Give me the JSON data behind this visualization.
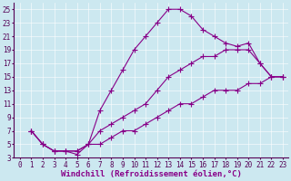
{
  "background_color": "#cce8f0",
  "plot_bg_color": "#cce8f0",
  "line_color": "#880088",
  "marker": "+",
  "marker_size": 4,
  "linewidth": 0.8,
  "xlabel": "Windchill (Refroidissement éolien,°C)",
  "xlabel_fontsize": 6.5,
  "tick_fontsize": 5.5,
  "xlim": [
    -0.5,
    23.5
  ],
  "ylim": [
    3,
    26
  ],
  "yticks": [
    3,
    5,
    7,
    9,
    11,
    13,
    15,
    17,
    19,
    21,
    23,
    25
  ],
  "xticks": [
    0,
    1,
    2,
    3,
    4,
    5,
    6,
    7,
    8,
    9,
    10,
    11,
    12,
    13,
    14,
    15,
    16,
    17,
    18,
    19,
    20,
    21,
    22,
    23
  ],
  "curves": [
    {
      "x": [
        1,
        2,
        3,
        4,
        5,
        6,
        7,
        8,
        9,
        10,
        11,
        12,
        13,
        14,
        15,
        16,
        17,
        18,
        19,
        20,
        21,
        22,
        23
      ],
      "y": [
        7,
        5,
        4,
        4,
        3.5,
        5,
        10,
        13,
        16,
        19,
        21,
        23,
        25,
        25,
        24,
        22,
        21,
        20,
        19.5,
        20,
        17,
        15,
        15
      ]
    },
    {
      "x": [
        1,
        2,
        3,
        4,
        5,
        6,
        7,
        8,
        9,
        10,
        11,
        12,
        13,
        14,
        15,
        16,
        17,
        18,
        19,
        20,
        21,
        22,
        23
      ],
      "y": [
        7,
        5,
        4,
        4,
        4,
        5,
        7,
        8,
        9,
        10,
        11,
        13,
        15,
        16,
        17,
        18,
        18,
        19,
        19,
        19,
        17,
        15,
        15
      ]
    },
    {
      "x": [
        1,
        2,
        3,
        4,
        5,
        6,
        7,
        8,
        9,
        10,
        11,
        12,
        13,
        14,
        15,
        16,
        17,
        18,
        19,
        20,
        21,
        22,
        23
      ],
      "y": [
        7,
        5,
        4,
        4,
        4,
        5,
        5,
        6,
        7,
        7,
        8,
        9,
        10,
        11,
        11,
        12,
        13,
        13,
        13,
        14,
        14,
        15,
        15
      ]
    }
  ]
}
